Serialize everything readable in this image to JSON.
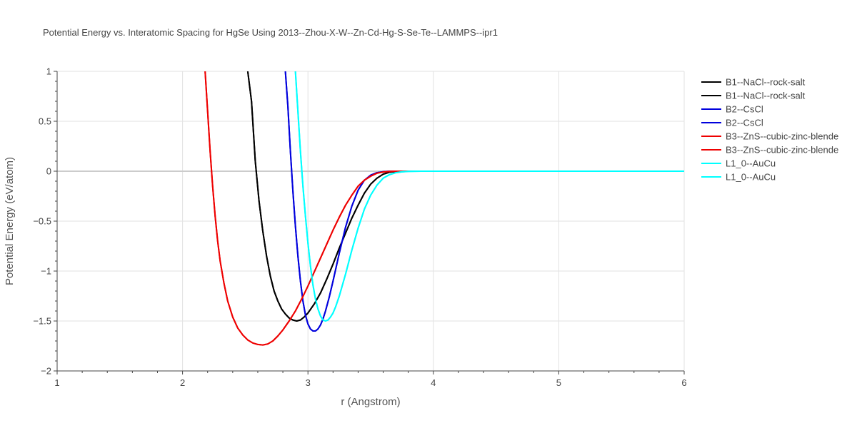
{
  "chart_data": {
    "type": "line",
    "title": "Potential Energy vs. Interatomic Spacing for HgSe Using 2013--Zhou-X-W--Zn-Cd-Hg-S-Se-Te--LAMMPS--ipr1",
    "xlabel": "r (Angstrom)",
    "ylabel": "Potential Energy (eV/atom)",
    "xlim": [
      1,
      6
    ],
    "ylim": [
      -2,
      1
    ],
    "xticks": [
      1,
      2,
      3,
      4,
      5,
      6
    ],
    "xtick_labels": [
      "1",
      "2",
      "3",
      "4",
      "5",
      "6"
    ],
    "yticks": [
      1,
      0.5,
      0,
      -0.5,
      -1,
      -1.5,
      -2
    ],
    "ytick_labels": [
      "1",
      "0.5",
      "0",
      "−0.5",
      "−1",
      "−1.5",
      "−2"
    ],
    "grid": true,
    "legend_position": "top-right",
    "series": [
      {
        "name": "B1--NaCl--rock-salt",
        "color": "#000000",
        "x": [
          2.52,
          2.55,
          2.58,
          2.61,
          2.64,
          2.67,
          2.7,
          2.73,
          2.76,
          2.79,
          2.82,
          2.85,
          2.88,
          2.91,
          2.94,
          2.97,
          3.0,
          3.05,
          3.1,
          3.15,
          3.2,
          3.25,
          3.3,
          3.35,
          3.4,
          3.45,
          3.5,
          3.55,
          3.6,
          3.65,
          3.7,
          3.75,
          3.8,
          3.85,
          3.9,
          4.0,
          4.5,
          5.0,
          6.0
        ],
        "y": [
          1.0,
          0.7,
          0.1,
          -0.3,
          -0.6,
          -0.85,
          -1.05,
          -1.2,
          -1.3,
          -1.38,
          -1.43,
          -1.47,
          -1.49,
          -1.5,
          -1.49,
          -1.46,
          -1.42,
          -1.33,
          -1.22,
          -1.08,
          -0.93,
          -0.77,
          -0.62,
          -0.47,
          -0.34,
          -0.22,
          -0.13,
          -0.07,
          -0.03,
          -0.01,
          -0.004,
          -0.001,
          0.0,
          0.0,
          0.0,
          0.0,
          0.0,
          0.0,
          0.0
        ]
      },
      {
        "name": "B1--NaCl--rock-salt",
        "color": "#000000",
        "x": [
          2.52,
          2.55,
          2.58,
          2.61,
          2.64,
          2.67,
          2.7,
          2.73,
          2.76,
          2.79,
          2.82,
          2.85,
          2.88,
          2.91,
          2.94,
          2.97,
          3.0,
          3.05,
          3.1,
          3.15,
          3.2,
          3.25,
          3.3,
          3.35,
          3.4,
          3.45,
          3.5,
          3.55,
          3.6,
          3.65,
          3.7,
          3.75,
          3.8,
          3.85,
          3.9,
          4.0,
          4.5,
          5.0,
          6.0
        ],
        "y": [
          1.0,
          0.7,
          0.1,
          -0.3,
          -0.6,
          -0.85,
          -1.05,
          -1.2,
          -1.3,
          -1.38,
          -1.43,
          -1.47,
          -1.49,
          -1.5,
          -1.49,
          -1.46,
          -1.42,
          -1.33,
          -1.22,
          -1.08,
          -0.93,
          -0.77,
          -0.62,
          -0.47,
          -0.34,
          -0.22,
          -0.13,
          -0.07,
          -0.03,
          -0.01,
          -0.004,
          -0.001,
          0.0,
          0.0,
          0.0,
          0.0,
          0.0,
          0.0,
          0.0
        ]
      },
      {
        "name": "B2--CsCl",
        "color": "#0000dd",
        "x": [
          2.82,
          2.84,
          2.86,
          2.88,
          2.9,
          2.92,
          2.94,
          2.96,
          2.98,
          3.0,
          3.02,
          3.04,
          3.06,
          3.08,
          3.1,
          3.12,
          3.14,
          3.17,
          3.2,
          3.25,
          3.3,
          3.35,
          3.4,
          3.45,
          3.5,
          3.55,
          3.6,
          3.65,
          3.7,
          3.75,
          3.8,
          3.9,
          4.0,
          4.5,
          5.0,
          6.0
        ],
        "y": [
          1.0,
          0.65,
          0.2,
          -0.2,
          -0.55,
          -0.85,
          -1.1,
          -1.3,
          -1.44,
          -1.53,
          -1.58,
          -1.6,
          -1.6,
          -1.58,
          -1.54,
          -1.48,
          -1.4,
          -1.26,
          -1.1,
          -0.82,
          -0.56,
          -0.35,
          -0.19,
          -0.09,
          -0.04,
          -0.015,
          -0.005,
          -0.001,
          0.0,
          0.0,
          0.0,
          0.0,
          0.0,
          0.0,
          0.0,
          0.0
        ]
      },
      {
        "name": "B2--CsCl",
        "color": "#0000dd",
        "x": [
          2.82,
          2.84,
          2.86,
          2.88,
          2.9,
          2.92,
          2.94,
          2.96,
          2.98,
          3.0,
          3.02,
          3.04,
          3.06,
          3.08,
          3.1,
          3.12,
          3.14,
          3.17,
          3.2,
          3.25,
          3.3,
          3.35,
          3.4,
          3.45,
          3.5,
          3.55,
          3.6,
          3.65,
          3.7,
          3.75,
          3.8,
          3.9,
          4.0,
          4.5,
          5.0,
          6.0
        ],
        "y": [
          1.0,
          0.65,
          0.2,
          -0.2,
          -0.55,
          -0.85,
          -1.1,
          -1.3,
          -1.44,
          -1.53,
          -1.58,
          -1.6,
          -1.6,
          -1.58,
          -1.54,
          -1.48,
          -1.4,
          -1.26,
          -1.1,
          -0.82,
          -0.56,
          -0.35,
          -0.19,
          -0.09,
          -0.04,
          -0.015,
          -0.005,
          -0.001,
          0.0,
          0.0,
          0.0,
          0.0,
          0.0,
          0.0,
          0.0,
          0.0
        ]
      },
      {
        "name": "B3--ZnS--cubic-zinc-blende",
        "color": "#ee0000",
        "x": [
          2.18,
          2.2,
          2.22,
          2.24,
          2.26,
          2.28,
          2.3,
          2.33,
          2.36,
          2.4,
          2.44,
          2.48,
          2.52,
          2.56,
          2.6,
          2.64,
          2.68,
          2.72,
          2.76,
          2.8,
          2.85,
          2.9,
          2.95,
          3.0,
          3.05,
          3.1,
          3.15,
          3.2,
          3.25,
          3.3,
          3.35,
          3.4,
          3.45,
          3.5,
          3.55,
          3.6,
          3.65,
          3.7,
          3.8,
          3.9,
          4.0,
          4.5,
          5.0,
          6.0
        ],
        "y": [
          1.0,
          0.6,
          0.2,
          -0.15,
          -0.45,
          -0.7,
          -0.9,
          -1.12,
          -1.3,
          -1.46,
          -1.57,
          -1.64,
          -1.69,
          -1.72,
          -1.735,
          -1.74,
          -1.73,
          -1.7,
          -1.65,
          -1.59,
          -1.5,
          -1.4,
          -1.28,
          -1.15,
          -1.01,
          -0.87,
          -0.73,
          -0.59,
          -0.46,
          -0.34,
          -0.24,
          -0.15,
          -0.09,
          -0.05,
          -0.02,
          -0.008,
          -0.003,
          -0.001,
          0.0,
          0.0,
          0.0,
          0.0,
          0.0,
          0.0
        ]
      },
      {
        "name": "B3--ZnS--cubic-zinc-blende",
        "color": "#ee0000",
        "x": [
          2.18,
          2.2,
          2.22,
          2.24,
          2.26,
          2.28,
          2.3,
          2.33,
          2.36,
          2.4,
          2.44,
          2.48,
          2.52,
          2.56,
          2.6,
          2.64,
          2.68,
          2.72,
          2.76,
          2.8,
          2.85,
          2.9,
          2.95,
          3.0,
          3.05,
          3.1,
          3.15,
          3.2,
          3.25,
          3.3,
          3.35,
          3.4,
          3.45,
          3.5,
          3.55,
          3.6,
          3.65,
          3.7,
          3.8,
          3.9,
          4.0,
          4.5,
          5.0,
          6.0
        ],
        "y": [
          1.0,
          0.6,
          0.2,
          -0.15,
          -0.45,
          -0.7,
          -0.9,
          -1.12,
          -1.3,
          -1.46,
          -1.57,
          -1.64,
          -1.69,
          -1.72,
          -1.735,
          -1.74,
          -1.73,
          -1.7,
          -1.65,
          -1.59,
          -1.5,
          -1.4,
          -1.28,
          -1.15,
          -1.01,
          -0.87,
          -0.73,
          -0.59,
          -0.46,
          -0.34,
          -0.24,
          -0.15,
          -0.09,
          -0.05,
          -0.02,
          -0.008,
          -0.003,
          -0.001,
          0.0,
          0.0,
          0.0,
          0.0,
          0.0,
          0.0
        ]
      },
      {
        "name": "L1_0--AuCu",
        "color": "#00ffff",
        "x": [
          2.9,
          2.92,
          2.94,
          2.96,
          2.98,
          3.0,
          3.02,
          3.04,
          3.06,
          3.08,
          3.1,
          3.12,
          3.14,
          3.16,
          3.18,
          3.2,
          3.22,
          3.25,
          3.3,
          3.35,
          3.4,
          3.45,
          3.5,
          3.55,
          3.6,
          3.65,
          3.7,
          3.75,
          3.8,
          3.85,
          3.9,
          4.0,
          4.5,
          5.0,
          6.0
        ],
        "y": [
          1.0,
          0.6,
          0.2,
          -0.15,
          -0.45,
          -0.72,
          -0.95,
          -1.14,
          -1.28,
          -1.38,
          -1.45,
          -1.49,
          -1.5,
          -1.49,
          -1.46,
          -1.42,
          -1.36,
          -1.25,
          -1.03,
          -0.79,
          -0.57,
          -0.38,
          -0.24,
          -0.14,
          -0.07,
          -0.035,
          -0.015,
          -0.006,
          -0.002,
          -0.001,
          0.0,
          0.0,
          0.0,
          0.0,
          0.0
        ]
      },
      {
        "name": "L1_0--AuCu",
        "color": "#00ffff",
        "x": [
          2.9,
          2.92,
          2.94,
          2.96,
          2.98,
          3.0,
          3.02,
          3.04,
          3.06,
          3.08,
          3.1,
          3.12,
          3.14,
          3.16,
          3.18,
          3.2,
          3.22,
          3.25,
          3.3,
          3.35,
          3.4,
          3.45,
          3.5,
          3.55,
          3.6,
          3.65,
          3.7,
          3.75,
          3.8,
          3.85,
          3.9,
          4.0,
          4.5,
          5.0,
          6.0
        ],
        "y": [
          1.0,
          0.6,
          0.2,
          -0.15,
          -0.45,
          -0.72,
          -0.95,
          -1.14,
          -1.28,
          -1.38,
          -1.45,
          -1.49,
          -1.5,
          -1.49,
          -1.46,
          -1.42,
          -1.36,
          -1.25,
          -1.03,
          -0.79,
          -0.57,
          -0.38,
          -0.24,
          -0.14,
          -0.07,
          -0.035,
          -0.015,
          -0.006,
          -0.002,
          -0.001,
          0.0,
          0.0,
          0.0,
          0.0,
          0.0
        ]
      }
    ]
  }
}
